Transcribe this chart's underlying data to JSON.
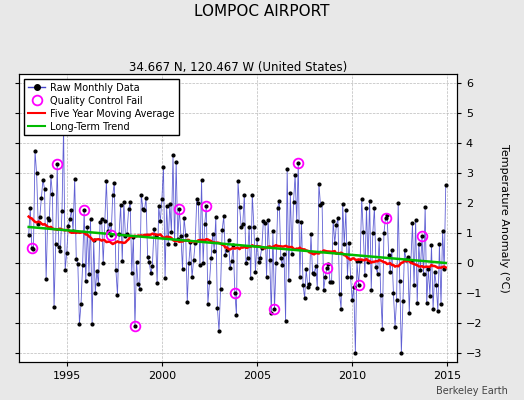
{
  "title": "LOMPOC AIRPORT",
  "subtitle": "34.667 N, 120.467 W (United States)",
  "ylabel": "Temperature Anomaly (°C)",
  "attribution": "Berkeley Earth",
  "xlim": [
    1992.5,
    2015.5
  ],
  "ylim": [
    -3.3,
    6.3
  ],
  "yticks": [
    -3,
    -2,
    -1,
    0,
    1,
    2,
    3,
    4,
    5,
    6
  ],
  "xticks": [
    1995,
    2000,
    2005,
    2010,
    2015
  ],
  "bg_color": "#e8e8e8",
  "plot_bg_color": "#ffffff",
  "raw_line_color": "#4444cc",
  "raw_marker_color": "#000000",
  "qc_fail_color": "#ff00ff",
  "moving_avg_color": "#ff0000",
  "trend_color": "#00bb00",
  "seed": 12345
}
